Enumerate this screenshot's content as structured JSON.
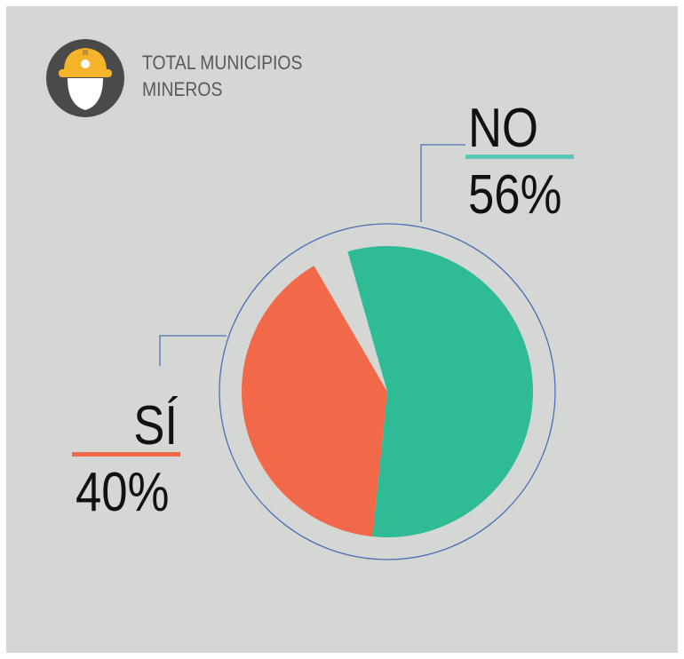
{
  "chart_data": {
    "type": "pie",
    "title": "TOTAL MUNICIPIOS MINEROS",
    "categories": [
      "NO",
      "SÍ"
    ],
    "values": [
      56,
      40
    ],
    "value_labels": [
      "56%",
      "40%"
    ],
    "colors": [
      "#2ebb95",
      "#f2694a"
    ]
  }
}
